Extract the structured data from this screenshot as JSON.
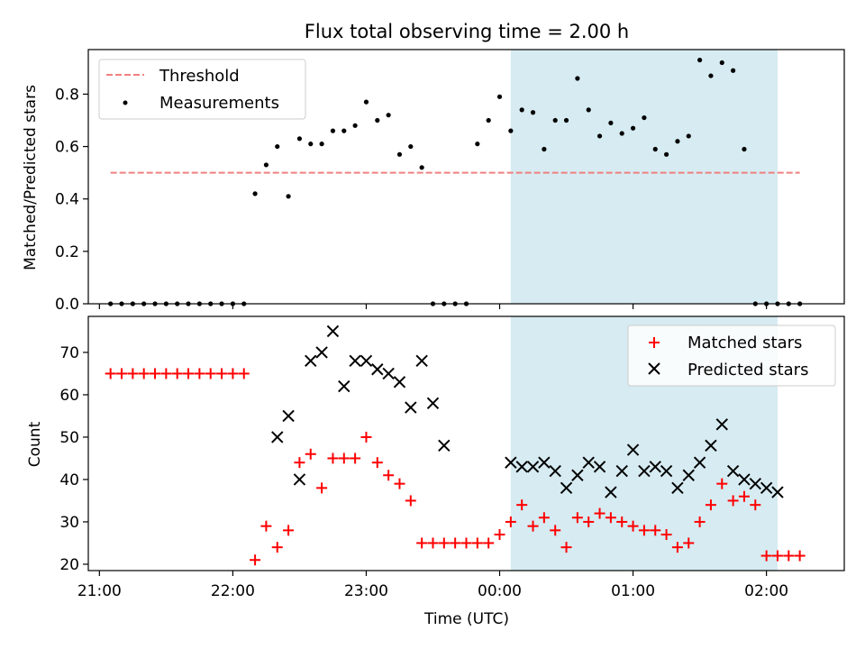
{
  "chart_data": [
    {
      "type": "scatter",
      "title": "Flux total observing time = 2.00 h",
      "xlabel": "",
      "ylabel": "Matched/Predicted stars",
      "xlim": [
        "20:55",
        "02:35"
      ],
      "ylim": [
        0,
        0.97
      ],
      "y_ticks": [
        "0.0",
        "0.2",
        "0.4",
        "0.6",
        "0.8"
      ],
      "y_tick_values": [
        0,
        0.2,
        0.4,
        0.6,
        0.8
      ],
      "legend_position": "upper-left",
      "highlight_span": [
        "00:05",
        "02:05"
      ],
      "threshold": {
        "name": "Threshold",
        "value": 0.5,
        "x_range": [
          "21:05",
          "02:15"
        ],
        "color": "#f08080",
        "style": "dashed"
      },
      "series": [
        {
          "name": "Measurements",
          "marker": "dot",
          "color": "#000000",
          "x": [
            "21:05",
            "21:10",
            "21:15",
            "21:20",
            "21:25",
            "21:30",
            "21:35",
            "21:40",
            "21:45",
            "21:50",
            "21:55",
            "22:00",
            "22:05",
            "22:10",
            "22:15",
            "22:20",
            "22:25",
            "22:30",
            "22:35",
            "22:40",
            "22:45",
            "22:50",
            "22:55",
            "23:00",
            "23:05",
            "23:10",
            "23:15",
            "23:20",
            "23:25",
            "23:30",
            "23:35",
            "23:40",
            "23:45",
            "23:50",
            "23:55",
            "00:00",
            "00:05",
            "00:10",
            "00:15",
            "00:20",
            "00:25",
            "00:30",
            "00:35",
            "00:40",
            "00:45",
            "00:50",
            "00:55",
            "01:00",
            "01:05",
            "01:10",
            "01:15",
            "01:20",
            "01:25",
            "01:30",
            "01:35",
            "01:40",
            "01:45",
            "01:50",
            "01:55",
            "02:00",
            "02:05",
            "02:10",
            "02:15"
          ],
          "y": [
            0,
            0,
            0,
            0,
            0,
            0,
            0,
            0,
            0,
            0,
            0,
            0,
            0,
            0.42,
            0.53,
            0.6,
            0.41,
            0.63,
            0.61,
            0.61,
            0.66,
            0.66,
            0.68,
            0.77,
            0.7,
            0.72,
            0.57,
            0.6,
            0.52,
            0,
            0,
            0,
            0,
            0.61,
            0.7,
            0.79,
            0.66,
            0.74,
            0.73,
            0.59,
            0.7,
            0.7,
            0.86,
            0.74,
            0.64,
            0.69,
            0.65,
            0.67,
            0.71,
            0.59,
            0.57,
            0.62,
            0.64,
            0.93,
            0.87,
            0.92,
            0.89,
            0.59,
            0,
            0,
            0,
            0,
            0
          ]
        }
      ]
    },
    {
      "type": "scatter",
      "title": "",
      "xlabel": "Time (UTC)",
      "ylabel": "Count",
      "xlim": [
        "20:55",
        "02:35"
      ],
      "ylim": [
        18.5,
        78.5
      ],
      "x_ticks": [
        "21:00",
        "22:00",
        "23:00",
        "00:00",
        "01:00",
        "02:00"
      ],
      "y_ticks": [
        "20",
        "30",
        "40",
        "50",
        "60",
        "70"
      ],
      "y_tick_values": [
        20,
        30,
        40,
        50,
        60,
        70
      ],
      "legend_position": "upper-right",
      "highlight_span": [
        "00:05",
        "02:05"
      ],
      "series": [
        {
          "name": "Matched stars",
          "marker": "plus",
          "color": "#ff0000",
          "x": [
            "21:05",
            "21:10",
            "21:15",
            "21:20",
            "21:25",
            "21:30",
            "21:35",
            "21:40",
            "21:45",
            "21:50",
            "21:55",
            "22:00",
            "22:05",
            "22:10",
            "22:15",
            "22:20",
            "22:25",
            "22:30",
            "22:35",
            "22:40",
            "22:45",
            "22:50",
            "22:55",
            "23:00",
            "23:05",
            "23:10",
            "23:15",
            "23:20",
            "23:25",
            "23:30",
            "23:35",
            "23:40",
            "23:45",
            "23:50",
            "23:55",
            "00:00",
            "00:05",
            "00:10",
            "00:15",
            "00:20",
            "00:25",
            "00:30",
            "00:35",
            "00:40",
            "00:45",
            "00:50",
            "00:55",
            "01:00",
            "01:05",
            "01:10",
            "01:15",
            "01:20",
            "01:25",
            "01:30",
            "01:35",
            "01:40",
            "01:45",
            "01:50",
            "01:55",
            "02:00",
            "02:05",
            "02:10",
            "02:15"
          ],
          "y": [
            65,
            65,
            65,
            65,
            65,
            65,
            65,
            65,
            65,
            65,
            65,
            65,
            65,
            21,
            29,
            24,
            28,
            44,
            46,
            38,
            45,
            45,
            45,
            50,
            44,
            41,
            39,
            35,
            25,
            25,
            25,
            25,
            25,
            25,
            25,
            27,
            30,
            34,
            29,
            31,
            28,
            24,
            31,
            30,
            32,
            31,
            30,
            29,
            28,
            28,
            27,
            24,
            25,
            30,
            34,
            39,
            35,
            36,
            34,
            22,
            22,
            22,
            22
          ]
        },
        {
          "name": "Predicted stars",
          "marker": "x",
          "color": "#000000",
          "x": [
            "22:20",
            "22:25",
            "22:30",
            "22:35",
            "22:40",
            "22:45",
            "22:50",
            "22:55",
            "23:00",
            "23:05",
            "23:10",
            "23:15",
            "23:20",
            "23:25",
            "23:30",
            "23:35",
            "00:05",
            "00:10",
            "00:15",
            "00:20",
            "00:25",
            "00:30",
            "00:35",
            "00:40",
            "00:45",
            "00:50",
            "00:55",
            "01:00",
            "01:05",
            "01:10",
            "01:15",
            "01:20",
            "01:25",
            "01:30",
            "01:35",
            "01:40",
            "01:45",
            "01:50",
            "01:55",
            "02:00",
            "02:05"
          ],
          "y": [
            50,
            55,
            40,
            68,
            70,
            75,
            62,
            68,
            68,
            66,
            65,
            63,
            57,
            68,
            58,
            48,
            44,
            43,
            43,
            44,
            42,
            38,
            41,
            44,
            43,
            37,
            42,
            47,
            42,
            43,
            42,
            38,
            41,
            44,
            48,
            53,
            42,
            40,
            39,
            38,
            37
          ]
        }
      ]
    }
  ]
}
